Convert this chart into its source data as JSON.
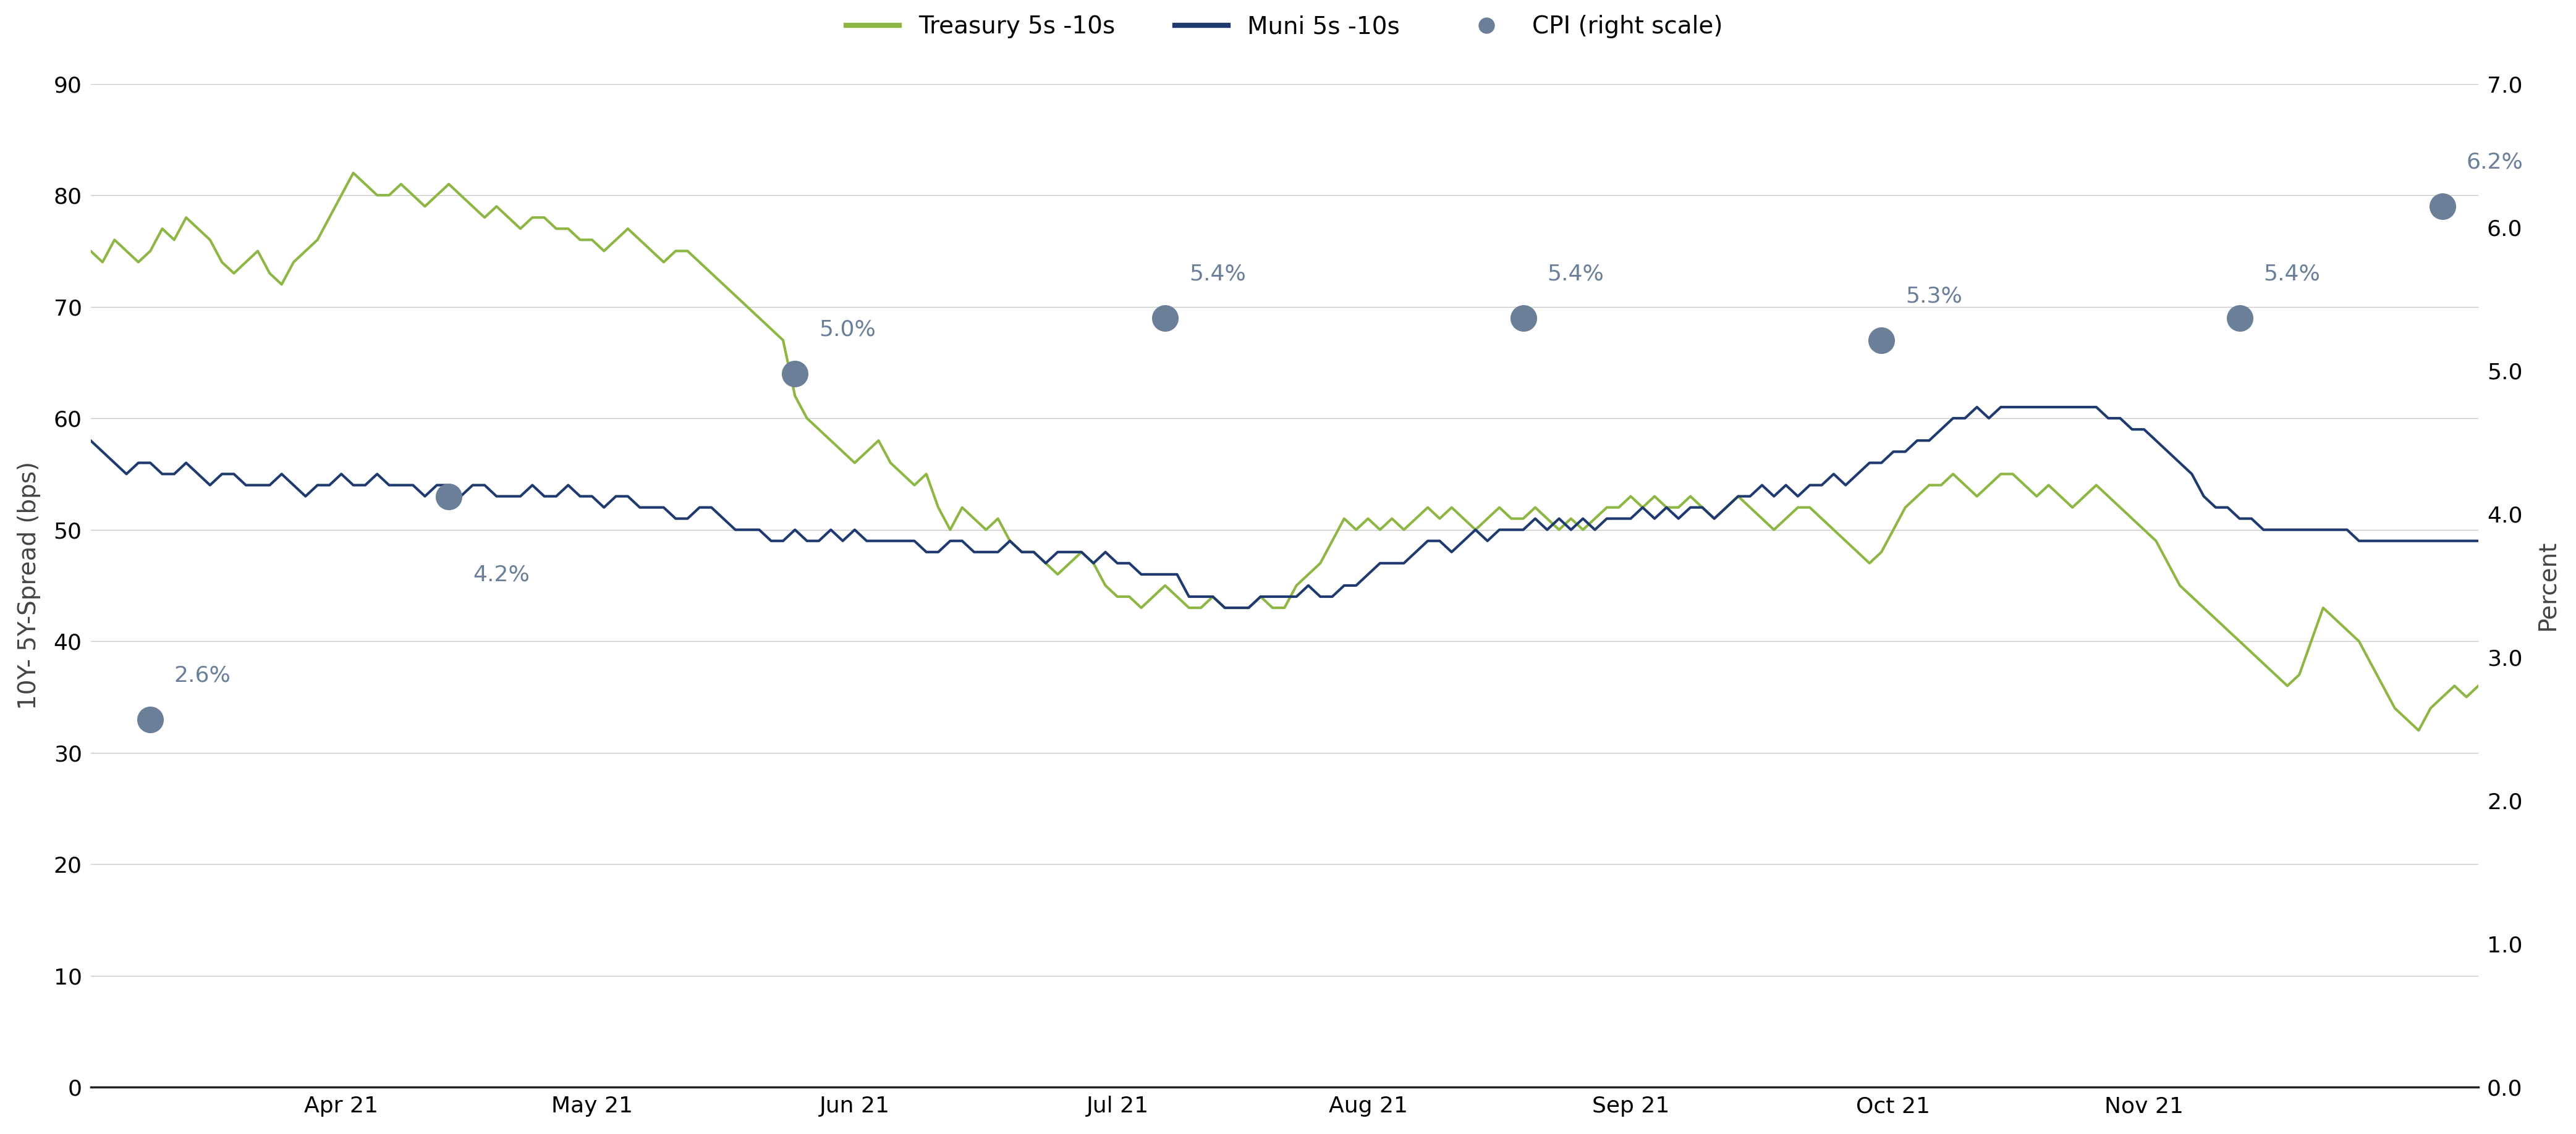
{
  "treasury_y": [
    75,
    74,
    76,
    75,
    74,
    75,
    77,
    76,
    78,
    77,
    76,
    74,
    73,
    74,
    75,
    73,
    72,
    74,
    75,
    76,
    78,
    80,
    82,
    81,
    80,
    80,
    81,
    80,
    79,
    80,
    81,
    80,
    79,
    78,
    79,
    78,
    77,
    78,
    78,
    77,
    77,
    76,
    76,
    75,
    76,
    77,
    76,
    75,
    74,
    75,
    75,
    74,
    73,
    72,
    71,
    70,
    69,
    68,
    67,
    62,
    60,
    59,
    58,
    57,
    56,
    57,
    58,
    56,
    55,
    54,
    55,
    52,
    50,
    52,
    51,
    50,
    51,
    49,
    48,
    48,
    47,
    46,
    47,
    48,
    47,
    45,
    44,
    44,
    43,
    44,
    45,
    44,
    43,
    43,
    44,
    43,
    43,
    43,
    44,
    43,
    43,
    45,
    46,
    47,
    49,
    51,
    50,
    51,
    50,
    51,
    50,
    51,
    52,
    51,
    52,
    51,
    50,
    51,
    52,
    51,
    51,
    52,
    51,
    50,
    51,
    50,
    51,
    52,
    52,
    53,
    52,
    53,
    52,
    52,
    53,
    52,
    51,
    52,
    53,
    52,
    51,
    50,
    51,
    52,
    52,
    51,
    50,
    49,
    48,
    47,
    48,
    50,
    52,
    53,
    54,
    54,
    55,
    54,
    53,
    54,
    55,
    55,
    54,
    53,
    54,
    53,
    52,
    53,
    54,
    53,
    52,
    51,
    50,
    49,
    47,
    45,
    44,
    43,
    42,
    41,
    40,
    39,
    38,
    37,
    36,
    37,
    40,
    43,
    42,
    41,
    40,
    38,
    36,
    34,
    33,
    32,
    34,
    35,
    36,
    35,
    36
  ],
  "muni_y": [
    58,
    57,
    56,
    55,
    56,
    56,
    55,
    55,
    56,
    55,
    54,
    55,
    55,
    54,
    54,
    54,
    55,
    54,
    53,
    54,
    54,
    55,
    54,
    54,
    55,
    54,
    54,
    54,
    53,
    54,
    54,
    53,
    54,
    54,
    53,
    53,
    53,
    54,
    53,
    53,
    54,
    53,
    53,
    52,
    53,
    53,
    52,
    52,
    52,
    51,
    51,
    52,
    52,
    51,
    50,
    50,
    50,
    49,
    49,
    50,
    49,
    49,
    50,
    49,
    50,
    49,
    49,
    49,
    49,
    49,
    48,
    48,
    49,
    49,
    48,
    48,
    48,
    49,
    48,
    48,
    47,
    48,
    48,
    48,
    47,
    48,
    47,
    47,
    46,
    46,
    46,
    46,
    44,
    44,
    44,
    43,
    43,
    43,
    44,
    44,
    44,
    44,
    45,
    44,
    44,
    45,
    45,
    46,
    47,
    47,
    47,
    48,
    49,
    49,
    48,
    49,
    50,
    49,
    50,
    50,
    50,
    51,
    50,
    51,
    50,
    51,
    50,
    51,
    51,
    51,
    52,
    51,
    52,
    51,
    52,
    52,
    51,
    52,
    53,
    53,
    54,
    53,
    54,
    53,
    54,
    54,
    55,
    54,
    55,
    56,
    56,
    57,
    57,
    58,
    58,
    59,
    60,
    60,
    61,
    60,
    61,
    61,
    61,
    61,
    61,
    61,
    61,
    61,
    61,
    60,
    60,
    59,
    59,
    58,
    57,
    56,
    55,
    53,
    52,
    52,
    51,
    51,
    50,
    50,
    50,
    50,
    50,
    50,
    50,
    50,
    49,
    49,
    49,
    49,
    49,
    49,
    49,
    49,
    49,
    49,
    49
  ],
  "n_points": 201,
  "cpi_x_idx": [
    5,
    30,
    59,
    90,
    120,
    150,
    180,
    197
  ],
  "cpi_left_y": [
    33,
    53,
    64,
    69,
    69,
    67,
    69,
    79
  ],
  "cpi_pct": [
    "2.6%",
    "4.2%",
    "5.0%",
    "5.4%",
    "5.4%",
    "5.3%",
    "5.4%",
    "6.2%"
  ],
  "cpi_label_ha": [
    "left",
    "left",
    "left",
    "left",
    "left",
    "left",
    "left",
    "left"
  ],
  "cpi_label_x_off": [
    2,
    2,
    2,
    2,
    2,
    2,
    2,
    2
  ],
  "cpi_label_y_off": [
    3,
    -8,
    3,
    3,
    3,
    3,
    3,
    3
  ],
  "x_tick_positions": [
    21,
    42,
    64,
    86,
    107,
    129,
    151,
    172
  ],
  "x_tick_labels": [
    "Apr 21",
    "May 21",
    "Jun 21",
    "Jul 21",
    "Aug 21",
    "Sep 21",
    "Oct 21",
    "Nov 21"
  ],
  "y_left_ticks": [
    0,
    10,
    20,
    30,
    40,
    50,
    60,
    70,
    80,
    90
  ],
  "y_right_ticks": [
    0.0,
    1.0,
    2.0,
    3.0,
    4.0,
    5.0,
    6.0,
    7.0
  ],
  "y_left_min": 0,
  "y_left_max": 90,
  "y_right_min": 0.0,
  "y_right_max": 7.0,
  "x_min": 0,
  "x_max": 200,
  "treasury_color": "#8db645",
  "muni_color": "#1f3a6e",
  "cpi_color": "#6b7f99",
  "cpi_dot_size": 900,
  "line_width": 3.0,
  "ylabel_left": "10Y- 5Y-Spread (bps)",
  "ylabel_right": "Percent",
  "legend_labels": [
    "Treasury 5s -10s",
    "Muni 5s -10s",
    "CPI (right scale)"
  ],
  "background_color": "#ffffff",
  "grid_color": "#c8c8c8",
  "tick_label_fontsize": 26,
  "axis_label_fontsize": 28,
  "legend_fontsize": 28,
  "cpi_label_fontsize": 26
}
